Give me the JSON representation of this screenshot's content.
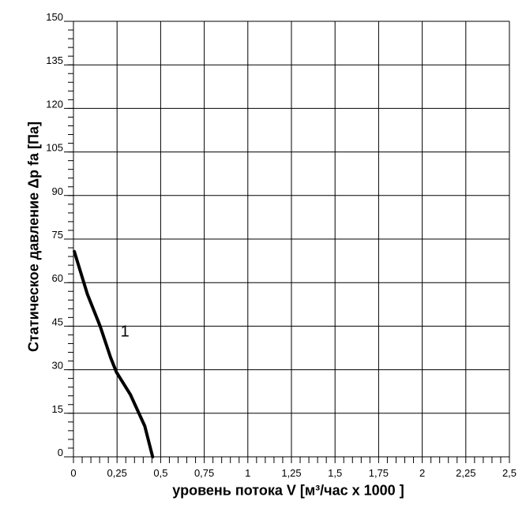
{
  "chart_data": {
    "type": "line",
    "title": "",
    "xlabel": "уровень потока  V [м³/час x 1000 ]",
    "ylabel": "Статическое давление  Δp fa [Па]",
    "xlim": [
      0,
      2.5
    ],
    "ylim": [
      0,
      150
    ],
    "grid": true,
    "x_ticks": [
      "0",
      "0,25",
      "0,5",
      "0,75",
      "1",
      "1,25",
      "1,5",
      "1,75",
      "2",
      "2,25",
      "2,5"
    ],
    "y_ticks": [
      "0",
      "15",
      "30",
      "45",
      "60",
      "75",
      "90",
      "105",
      "120",
      "135",
      "150"
    ],
    "series": [
      {
        "name": "1",
        "x": [
          0.005,
          0.08,
          0.153,
          0.213,
          0.246,
          0.326,
          0.409,
          0.454
        ],
        "y": [
          70.7,
          56,
          45,
          34.2,
          29.2,
          21.5,
          10.6,
          0
        ]
      }
    ],
    "line_color": "#000000"
  }
}
